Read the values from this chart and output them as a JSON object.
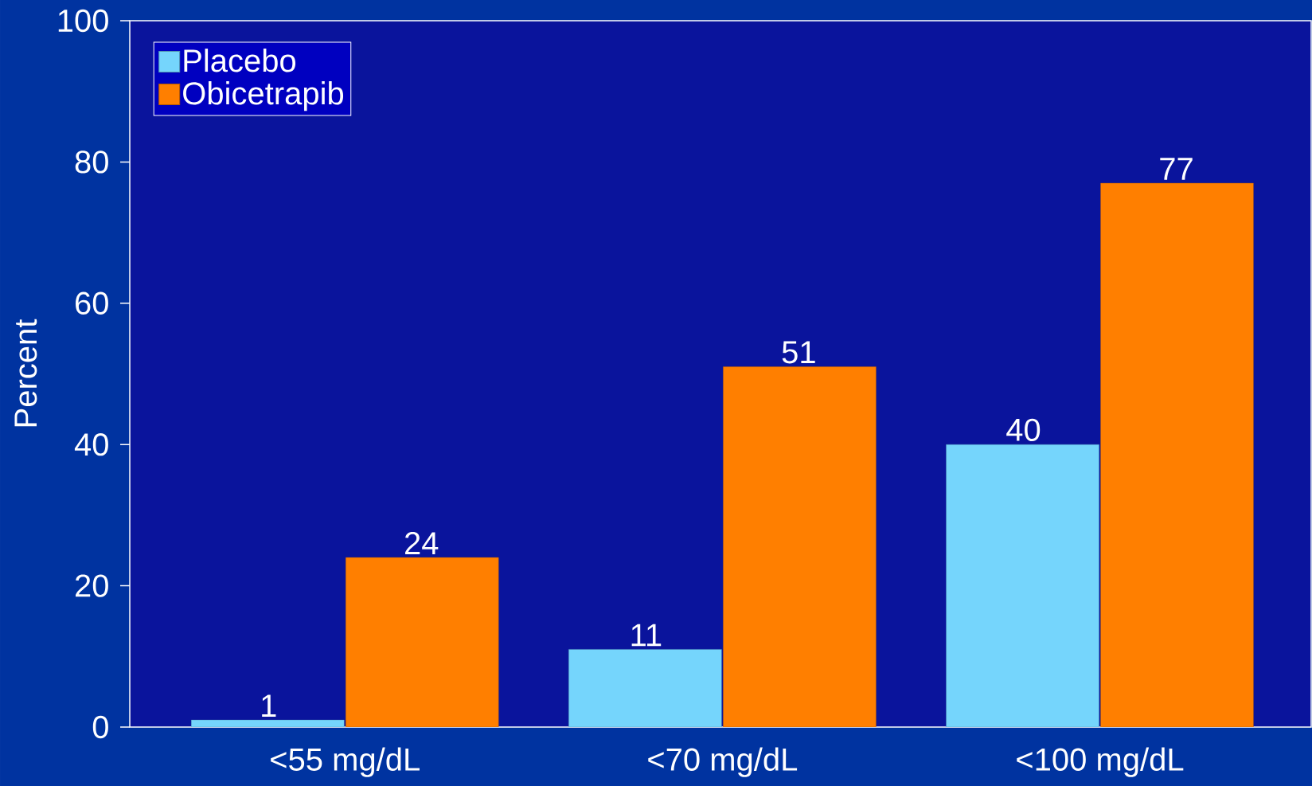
{
  "chart_data": {
    "type": "bar",
    "ylabel": "Percent",
    "categories": [
      "<55 mg/dL",
      "<70 mg/dL",
      "<100 mg/dL"
    ],
    "series": [
      {
        "name": "Placebo",
        "color": "#75d5fc",
        "values": [
          1,
          11,
          40
        ]
      },
      {
        "name": "Obicetrapib",
        "color": "#ff7f00",
        "values": [
          24,
          51,
          77
        ]
      }
    ],
    "ylim": [
      0,
      100
    ],
    "yticks": [
      0,
      20,
      40,
      60,
      80,
      100
    ],
    "legend": "top left",
    "data_labels": true
  }
}
